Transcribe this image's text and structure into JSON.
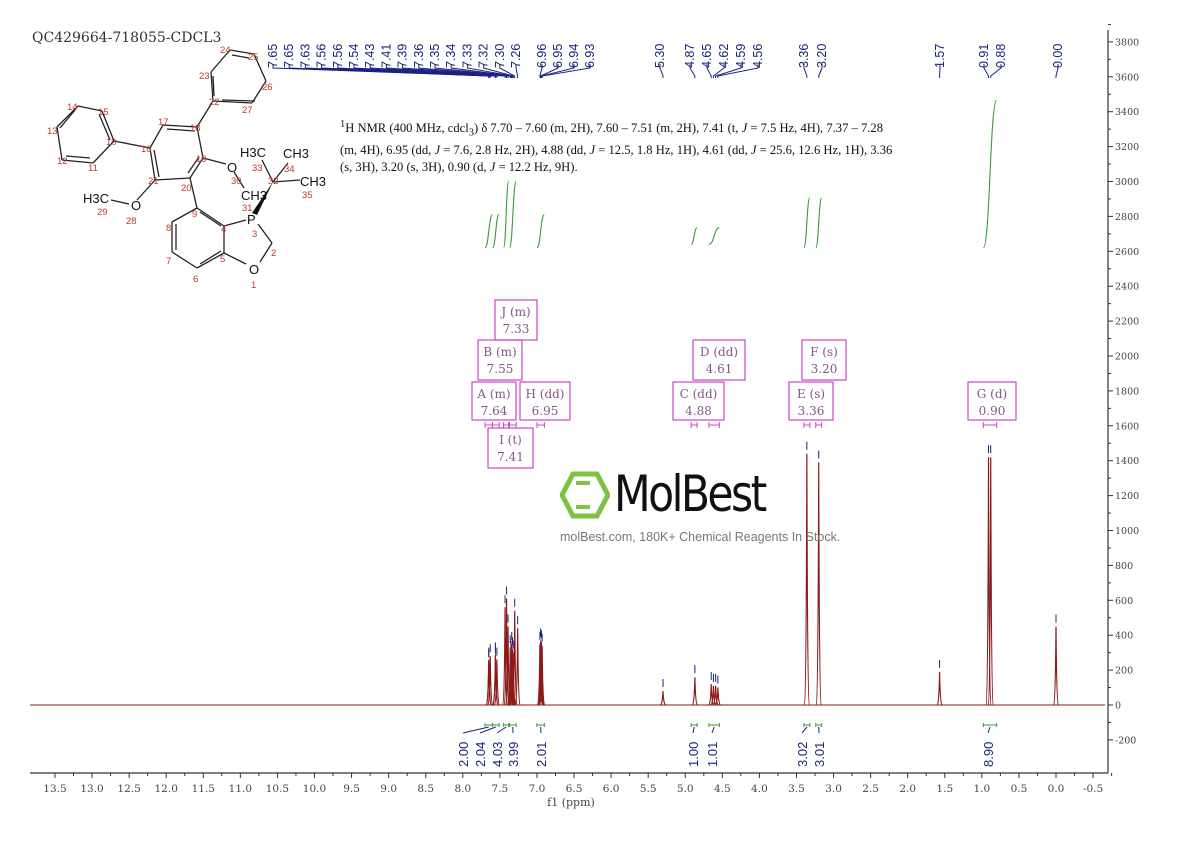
{
  "sample_id": "QC429664-718055-CDCL3",
  "nmr_description": "1H NMR (400 MHz, cdcl3) δ 7.70 – 7.60 (m, 2H), 7.60 – 7.51 (m, 2H), 7.41 (t, J = 7.5 Hz, 4H), 7.37 – 7.28 (m, 4H), 6.95 (dd, J = 7.6, 2.8 Hz, 2H), 4.88 (dd, J = 12.5, 1.8 Hz, 1H), 4.61 (dd, J = 25.6, 12.6 Hz, 1H), 3.36 (s, 3H), 3.20 (s, 3H), 0.90 (d, J = 12.2 Hz, 9H).",
  "watermark": {
    "brand": "MolBest",
    "tagline": "molBest.com, 180K+ Chemical Reagents In Stock.",
    "logo_color": "#7dc243"
  },
  "colors": {
    "spectrum": "#8b1a1a",
    "peak_labels": "#1a237e",
    "integrals": "#3a9a3a",
    "multiplets": "#cc44cc"
  },
  "structure_atom_numbers": [
    "1",
    "2",
    "3",
    "4",
    "5",
    "6",
    "7",
    "8",
    "9",
    "10",
    "11",
    "12",
    "13",
    "14",
    "15",
    "16",
    "17",
    "18",
    "19",
    "20",
    "21",
    "22",
    "23",
    "24",
    "25",
    "26",
    "27",
    "28",
    "29",
    "30",
    "31",
    "32",
    "33",
    "34",
    "35"
  ],
  "chart_data": {
    "type": "line",
    "title": "",
    "xlabel": "f1 (ppm)",
    "ylabel": "",
    "xlim": [
      13.7,
      -0.6
    ],
    "ylim": [
      -380,
      3900
    ],
    "x_ticks": [
      "13.5",
      "13.0",
      "12.5",
      "12.0",
      "11.5",
      "11.0",
      "10.5",
      "10.0",
      "9.5",
      "9.0",
      "8.5",
      "8.0",
      "7.5",
      "7.0",
      "6.5",
      "6.0",
      "5.5",
      "5.0",
      "4.5",
      "4.0",
      "3.5",
      "3.0",
      "2.5",
      "2.0",
      "1.5",
      "1.0",
      "0.5",
      "0.0",
      "-0.5"
    ],
    "y_ticks": [
      "3800",
      "3600",
      "3400",
      "3200",
      "3000",
      "2800",
      "2600",
      "2400",
      "2200",
      "2000",
      "1800",
      "1600",
      "1400",
      "1200",
      "1000",
      "800",
      "600",
      "400",
      "200",
      "0",
      "-200"
    ],
    "peaks": [
      {
        "ppm": 7.65,
        "label": "7.65",
        "intensity": 250
      },
      {
        "ppm": 7.65,
        "label": "7.65",
        "intensity": 260
      },
      {
        "ppm": 7.63,
        "label": "7.63",
        "intensity": 280
      },
      {
        "ppm": 7.56,
        "label": "7.56",
        "intensity": 270
      },
      {
        "ppm": 7.56,
        "label": "7.56",
        "intensity": 290
      },
      {
        "ppm": 7.54,
        "label": "7.54",
        "intensity": 260
      },
      {
        "ppm": 7.43,
        "label": "7.43",
        "intensity": 560
      },
      {
        "ppm": 7.41,
        "label": "7.41",
        "intensity": 610
      },
      {
        "ppm": 7.39,
        "label": "7.39",
        "intensity": 450
      },
      {
        "ppm": 7.36,
        "label": "7.36",
        "intensity": 330
      },
      {
        "ppm": 7.35,
        "label": "7.35",
        "intensity": 300
      },
      {
        "ppm": 7.34,
        "label": "7.34",
        "intensity": 350
      },
      {
        "ppm": 7.33,
        "label": "7.33",
        "intensity": 320
      },
      {
        "ppm": 7.32,
        "label": "7.32",
        "intensity": 300
      },
      {
        "ppm": 7.3,
        "label": "7.30",
        "intensity": 540
      },
      {
        "ppm": 7.26,
        "label": "7.26",
        "intensity": 440
      },
      {
        "ppm": 6.96,
        "label": "6.96",
        "intensity": 350
      },
      {
        "ppm": 6.95,
        "label": "6.95",
        "intensity": 370
      },
      {
        "ppm": 6.94,
        "label": "6.94",
        "intensity": 360
      },
      {
        "ppm": 6.93,
        "label": "6.93",
        "intensity": 340
      },
      {
        "ppm": 5.3,
        "label": "5.30",
        "intensity": 80
      },
      {
        "ppm": 4.87,
        "label": "4.87",
        "intensity": 160
      },
      {
        "ppm": 4.65,
        "label": "4.65",
        "intensity": 120
      },
      {
        "ppm": 4.62,
        "label": "4.62",
        "intensity": 110
      },
      {
        "ppm": 4.59,
        "label": "4.59",
        "intensity": 110
      },
      {
        "ppm": 4.56,
        "label": "4.56",
        "intensity": 100
      },
      {
        "ppm": 3.36,
        "label": "3.36",
        "intensity": 1440
      },
      {
        "ppm": 3.2,
        "label": "3.20",
        "intensity": 1390
      },
      {
        "ppm": 1.57,
        "label": "1.57",
        "intensity": 190
      },
      {
        "ppm": 0.91,
        "label": "0.91",
        "intensity": 1420
      },
      {
        "ppm": 0.88,
        "label": "0.88",
        "intensity": 1420
      },
      {
        "ppm": 0.0,
        "label": "0.00",
        "intensity": 450
      }
    ],
    "integrals": [
      {
        "from": 7.7,
        "to": 7.6,
        "value": "2.00"
      },
      {
        "from": 7.6,
        "to": 7.51,
        "value": "2.04"
      },
      {
        "from": 7.45,
        "to": 7.38,
        "value": "4.03"
      },
      {
        "from": 7.37,
        "to": 7.28,
        "value": "3.99"
      },
      {
        "from": 7.0,
        "to": 6.9,
        "value": "2.01"
      },
      {
        "from": 4.92,
        "to": 4.84,
        "value": "1.00"
      },
      {
        "from": 4.68,
        "to": 4.54,
        "value": "1.01"
      },
      {
        "from": 3.4,
        "to": 3.32,
        "value": "3.02"
      },
      {
        "from": 3.24,
        "to": 3.16,
        "value": "3.01"
      },
      {
        "from": 0.98,
        "to": 0.8,
        "value": "8.90"
      }
    ],
    "multiplets": [
      {
        "id": "J",
        "type": "(m)",
        "shift": "7.33"
      },
      {
        "id": "B",
        "type": "(m)",
        "shift": "7.55"
      },
      {
        "id": "A",
        "type": "(m)",
        "shift": "7.64"
      },
      {
        "id": "H",
        "type": "(dd)",
        "shift": "6.95"
      },
      {
        "id": "I",
        "type": "(t)",
        "shift": "7.41"
      },
      {
        "id": "D",
        "type": "(dd)",
        "shift": "4.61"
      },
      {
        "id": "C",
        "type": "(dd)",
        "shift": "4.88"
      },
      {
        "id": "F",
        "type": "(s)",
        "shift": "3.20"
      },
      {
        "id": "E",
        "type": "(s)",
        "shift": "3.36"
      },
      {
        "id": "G",
        "type": "(d)",
        "shift": "0.90"
      }
    ]
  }
}
